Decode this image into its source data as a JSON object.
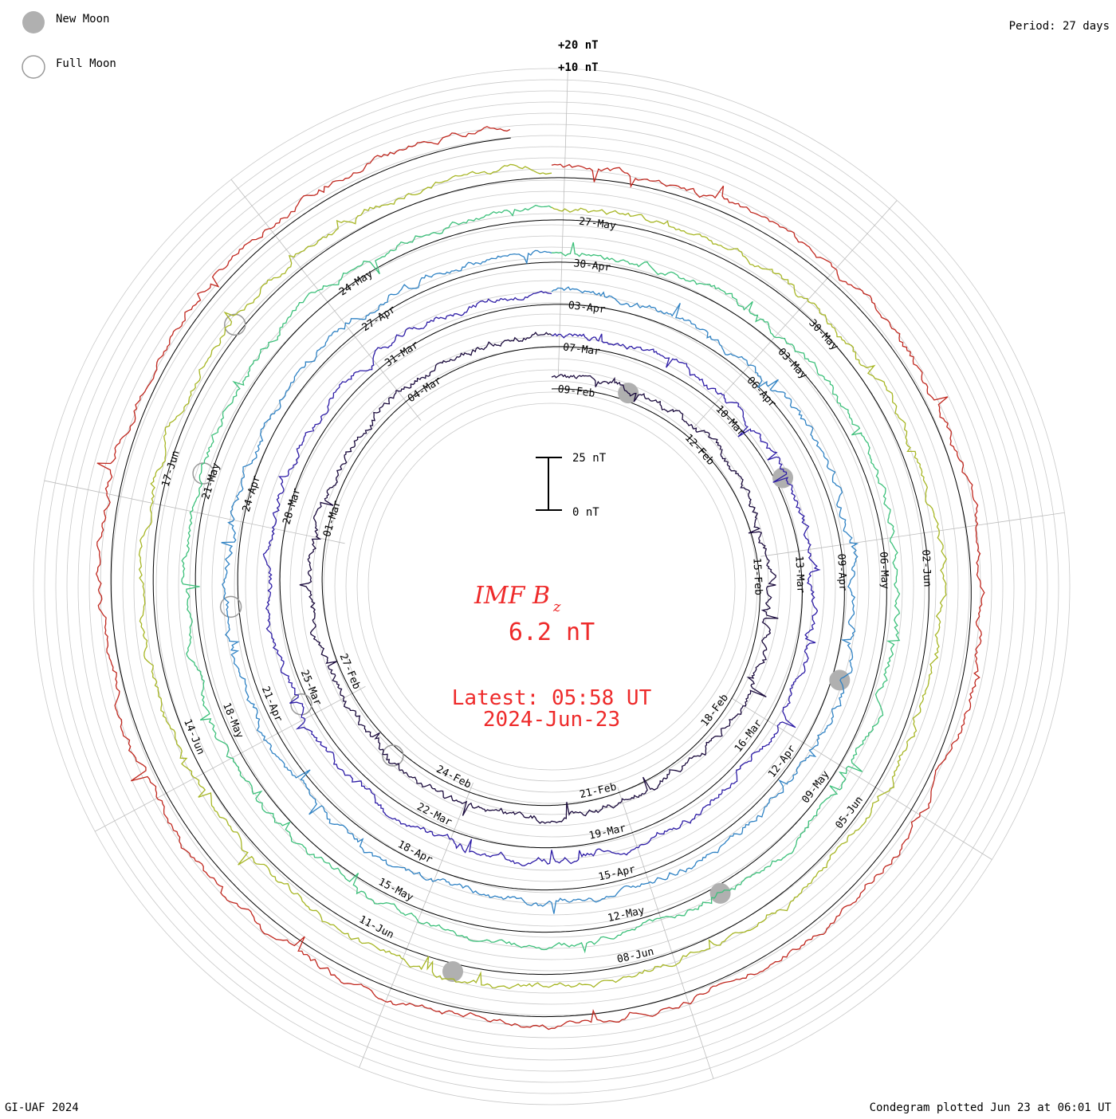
{
  "legend": {
    "new_moon_label": "New Moon",
    "full_moon_label": "Full Moon"
  },
  "period_label": "Period: 27 days",
  "footer_left": "GI-UAF 2024",
  "footer_right": "Condegram plotted Jun 23 at 06:01 UT",
  "colors": {
    "accent": "#ee2a2a",
    "grid": "#b4b4b4",
    "moon_new": "#b0b0b0"
  },
  "chart_data": {
    "type": "line",
    "subtype": "condegram-spiral",
    "title": "IMF B",
    "title_subscript": "z",
    "current_value": "6.2 nT",
    "latest_time": "Latest: 05:58 UT",
    "latest_date": "2024-Jun-23",
    "period_days": 27,
    "scale_bar": {
      "top_label": "25 nT",
      "bottom_label": "0 nT",
      "span_nT": 25
    },
    "ring_offset_labels": [
      "+20 nT",
      "+10 nT"
    ],
    "turns": [
      {
        "color": "#1a0a3c",
        "date_labels": [
          "09-Feb",
          "12-Feb",
          "15-Feb",
          "18-Feb",
          "21-Feb",
          "24-Feb",
          "27-Feb",
          "01-Mar",
          "04-Mar"
        ]
      },
      {
        "color": "#2d1ca6",
        "date_labels": [
          "07-Mar",
          "10-Mar",
          "13-Mar",
          "16-Mar",
          "19-Mar",
          "22-Mar",
          "25-Mar",
          "28-Mar",
          "31-Mar"
        ]
      },
      {
        "color": "#2f82c4",
        "date_labels": [
          "03-Apr",
          "06-Apr",
          "09-Apr",
          "12-Apr",
          "15-Apr",
          "18-Apr",
          "21-Apr",
          "24-Apr",
          "27-Apr"
        ]
      },
      {
        "color": "#3cc07a",
        "date_labels": [
          "30-Apr",
          "03-May",
          "06-May",
          "09-May",
          "12-May",
          "15-May",
          "18-May",
          "21-May",
          "24-May"
        ]
      },
      {
        "color": "#a7b624",
        "date_labels": [
          "27-May",
          "30-May",
          "02-Jun",
          "05-Jun",
          "08-Jun",
          "11-Jun",
          "14-Jun",
          "17-Jun"
        ]
      },
      {
        "color": "#c0271e",
        "date_labels": []
      }
    ],
    "new_moon_dates": [
      "09-Feb",
      "10-Mar",
      "08-Apr",
      "08-May",
      "06-Jun"
    ],
    "full_moon_dates": [
      "24-Feb",
      "25-Mar",
      "23-Apr",
      "23-May",
      "22-Jun"
    ],
    "ylabel": "nT"
  }
}
